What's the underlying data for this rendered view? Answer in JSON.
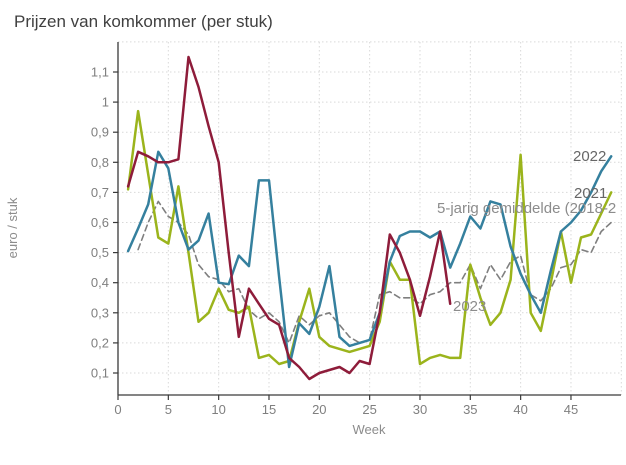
{
  "chart_data": {
    "type": "line",
    "title": "Prijzen van komkommer (per stuk)",
    "xlabel": "Week",
    "ylabel": "euro / stuk",
    "grid": true,
    "legend_position": "inline-end-labels",
    "xlim": [
      0,
      50
    ],
    "ylim": [
      0.03,
      1.2
    ],
    "x_ticks": [
      {
        "value": 0,
        "label": "0"
      },
      {
        "value": 5,
        "label": "5"
      },
      {
        "value": 10,
        "label": "10"
      },
      {
        "value": 15,
        "label": "15"
      },
      {
        "value": 20,
        "label": "20"
      },
      {
        "value": 25,
        "label": "25"
      },
      {
        "value": 30,
        "label": "30"
      },
      {
        "value": 35,
        "label": "35"
      },
      {
        "value": 40,
        "label": "40"
      },
      {
        "value": 45,
        "label": "45"
      }
    ],
    "y_ticks": [
      {
        "value": 0.1,
        "label": "0,1"
      },
      {
        "value": 0.2,
        "label": "0,2"
      },
      {
        "value": 0.3,
        "label": "0,3"
      },
      {
        "value": 0.4,
        "label": "0,4"
      },
      {
        "value": 0.5,
        "label": "0,5"
      },
      {
        "value": 0.6,
        "label": "0,6"
      },
      {
        "value": 0.7,
        "label": "0,7"
      },
      {
        "value": 0.8,
        "label": "0,8"
      },
      {
        "value": 0.9,
        "label": "0,9"
      },
      {
        "value": 1.0,
        "label": "1"
      },
      {
        "value": 1.1,
        "label": "1,1"
      }
    ],
    "colors": {
      "axis": "#3a3a3a",
      "grid": "#d9d9d9",
      "tick_label": "#7f7f7f",
      "title": "#404040",
      "year_label": "#666666",
      "annotation_label": "#8c8c8c"
    },
    "series": [
      {
        "name": "5-jarig gemiddelde (2018-2",
        "label": "5-jarig gemiddelde (2018-2",
        "color": "#7f7f7f",
        "dashed": true,
        "start_week": 2,
        "values": [
          0.51,
          0.6,
          0.67,
          0.62,
          0.6,
          0.56,
          0.46,
          0.42,
          0.41,
          0.37,
          0.38,
          0.31,
          0.28,
          0.3,
          0.27,
          0.2,
          0.29,
          0.26,
          0.29,
          0.3,
          0.26,
          0.22,
          0.2,
          0.21,
          0.36,
          0.37,
          0.35,
          0.35,
          0.33,
          0.36,
          0.37,
          0.4,
          0.4,
          0.46,
          0.38,
          0.46,
          0.41,
          0.47,
          0.49,
          0.36,
          0.34,
          0.38,
          0.45,
          0.46,
          0.51,
          0.5,
          0.57,
          0.6
        ]
      },
      {
        "name": "2021",
        "label": "2021",
        "color": "#9bb41c",
        "dashed": false,
        "start_week": 1,
        "values": [
          0.71,
          0.97,
          0.76,
          0.55,
          0.53,
          0.72,
          0.5,
          0.27,
          0.3,
          0.38,
          0.31,
          0.3,
          0.32,
          0.15,
          0.16,
          0.13,
          0.14,
          0.27,
          0.38,
          0.22,
          0.19,
          0.18,
          0.17,
          0.18,
          0.19,
          0.27,
          0.47,
          0.41,
          0.41,
          0.13,
          0.15,
          0.16,
          0.15,
          0.15,
          0.46,
          0.35,
          0.26,
          0.3,
          0.41,
          0.825,
          0.3,
          0.24,
          0.4,
          0.57,
          0.4,
          0.55,
          0.56,
          0.63,
          0.7
        ]
      },
      {
        "name": "2022",
        "label": "2022",
        "color": "#35809e",
        "dashed": false,
        "start_week": 1,
        "values": [
          0.505,
          0.58,
          0.66,
          0.835,
          0.78,
          0.6,
          0.51,
          0.54,
          0.63,
          0.4,
          0.395,
          0.49,
          0.455,
          0.74,
          0.74,
          0.42,
          0.12,
          0.265,
          0.23,
          0.32,
          0.455,
          0.22,
          0.19,
          0.2,
          0.21,
          0.3,
          0.47,
          0.555,
          0.57,
          0.57,
          0.55,
          0.57,
          0.45,
          0.53,
          0.62,
          0.58,
          0.67,
          0.66,
          0.52,
          0.43,
          0.36,
          0.3,
          0.44,
          0.57,
          0.6,
          0.64,
          0.7,
          0.77,
          0.82
        ]
      },
      {
        "name": "2023",
        "label": "2023",
        "color": "#8e1c3a",
        "dashed": false,
        "start_week": 1,
        "values": [
          0.72,
          0.835,
          0.82,
          0.8,
          0.8,
          0.81,
          1.15,
          1.05,
          0.92,
          0.8,
          0.5,
          0.22,
          0.38,
          0.33,
          0.28,
          0.26,
          0.15,
          0.12,
          0.08,
          0.1,
          0.11,
          0.12,
          0.1,
          0.14,
          0.13,
          0.3,
          0.56,
          0.5,
          0.41,
          0.29,
          0.42,
          0.57,
          0.33
        ]
      }
    ]
  }
}
